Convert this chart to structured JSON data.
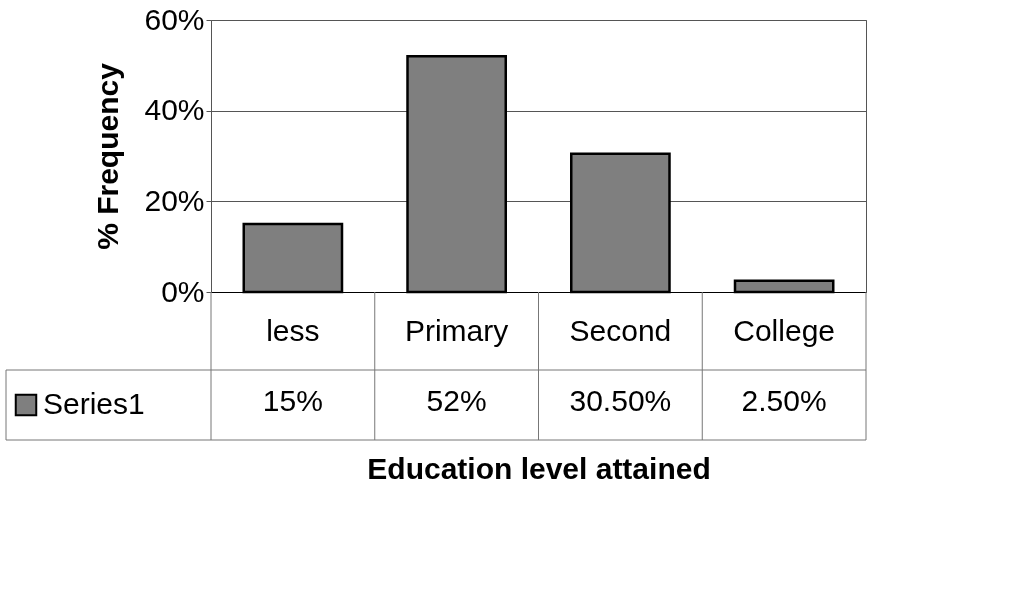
{
  "chart_data": {
    "type": "bar",
    "xlabel": "Education level attained",
    "ylabel": "% Frequency",
    "categories": [
      "less",
      "Primary",
      "Second",
      "College"
    ],
    "series": [
      {
        "name": "Series1",
        "color": "#7f7f7f",
        "values": [
          15,
          52,
          30.5,
          2.5
        ],
        "value_labels": [
          "15%",
          "52%",
          "30.50%",
          "2.50%"
        ]
      }
    ],
    "ylim": [
      0,
      60
    ],
    "yticks": [
      {
        "value": 0,
        "label": "0%"
      },
      {
        "value": 20,
        "label": "20%"
      },
      {
        "value": 40,
        "label": "40%"
      },
      {
        "value": 60,
        "label": "60%"
      }
    ],
    "grid": "y",
    "legend": "bottom"
  }
}
